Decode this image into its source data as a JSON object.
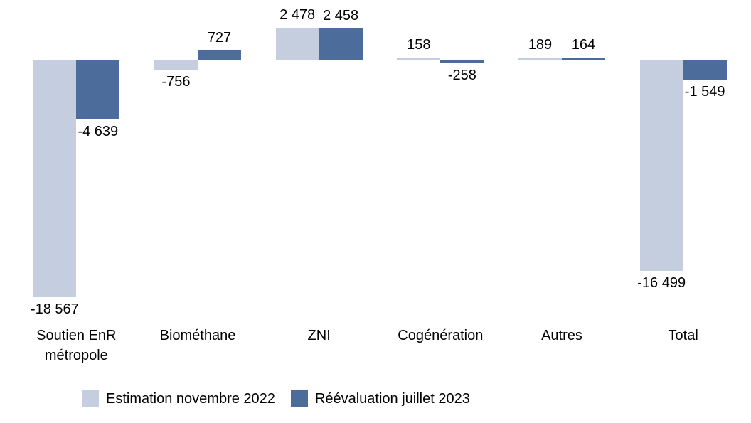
{
  "chart_data": {
    "type": "bar",
    "title": "",
    "xlabel": "",
    "ylabel": "",
    "grid": false,
    "legend_position": "bottom-left",
    "ylim": [
      -20000,
      3000
    ],
    "categories": [
      "Soutien EnR métropole",
      "Biométhane",
      "ZNI",
      "Cogénération",
      "Autres",
      "Total"
    ],
    "series": [
      {
        "name": "Estimation novembre 2022",
        "color": "#c5cede",
        "values": [
          -18567,
          -756,
          2478,
          158,
          189,
          -16499
        ],
        "labels": [
          "-18 567",
          "-756",
          "2 478",
          "158",
          "189",
          "-16 499"
        ]
      },
      {
        "name": "Réévaluation juillet 2023",
        "color": "#4c6c9c",
        "values": [
          -4639,
          727,
          2458,
          -258,
          164,
          -1549
        ],
        "labels": [
          "-4 639",
          "727",
          "2 458",
          "-258",
          "164",
          "-1 549"
        ]
      }
    ]
  }
}
